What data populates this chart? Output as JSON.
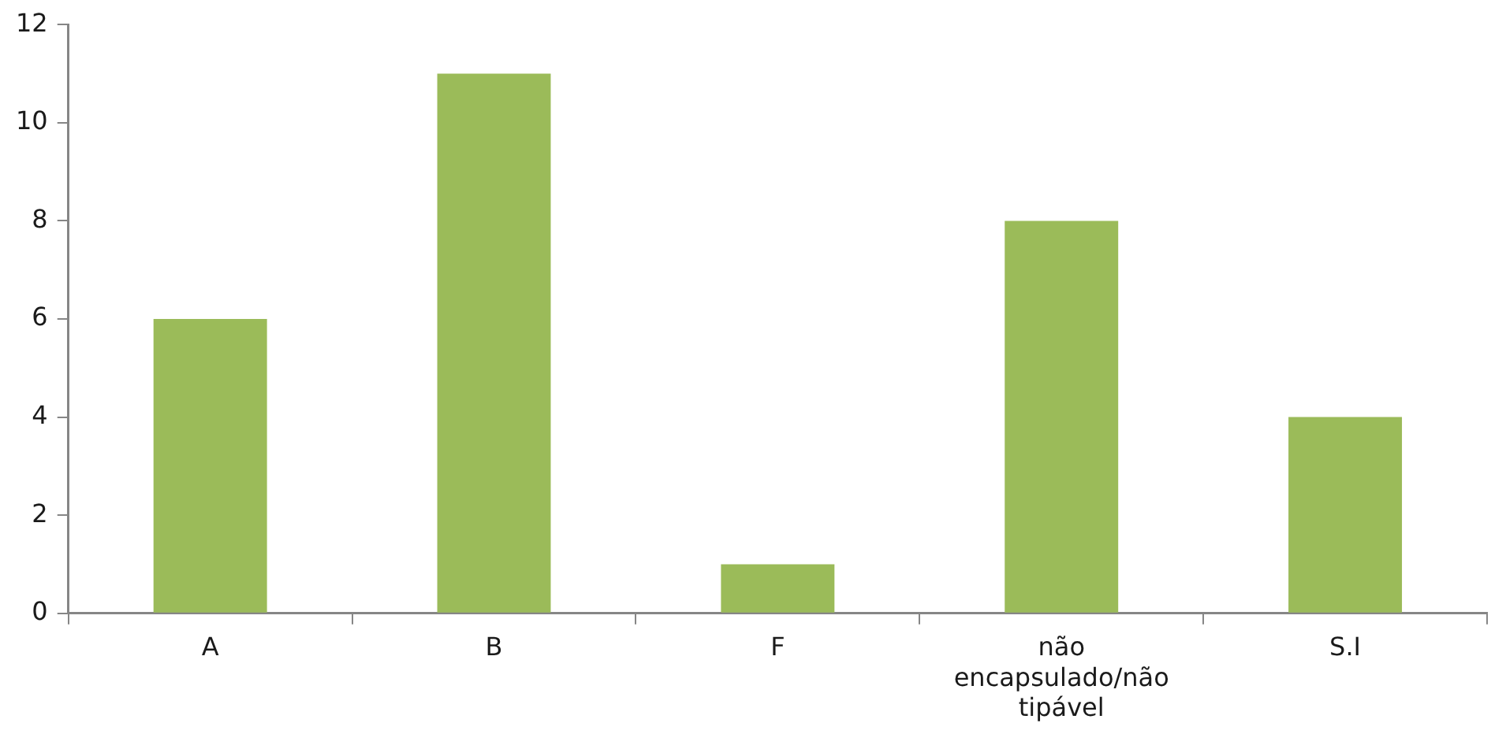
{
  "chart_data": {
    "type": "bar",
    "categories": [
      "A",
      "B",
      "F",
      "não encapsulado/não tipável",
      "S.I"
    ],
    "values": [
      6,
      11,
      1,
      8,
      4
    ],
    "color": "#9bbb59",
    "ylim": [
      0,
      12
    ],
    "yticks": [
      0,
      2,
      4,
      6,
      8,
      10,
      12
    ],
    "grid": false,
    "legend": false
  }
}
